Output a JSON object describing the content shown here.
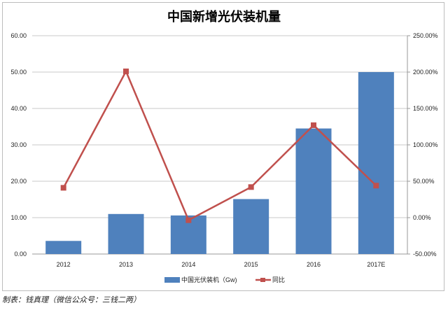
{
  "chart_data": {
    "type": "bar+line",
    "title": "中国新增光伏装机量",
    "categories": [
      "2012",
      "2013",
      "2014",
      "2015",
      "2016",
      "2017E"
    ],
    "series": [
      {
        "name": "中国光伏装机（Gw)",
        "type": "bar",
        "axis": "left",
        "color": "#4f81bd",
        "values": [
          3.6,
          11.0,
          10.6,
          15.1,
          34.5,
          50.0
        ]
      },
      {
        "name": "同比",
        "type": "line",
        "axis": "right",
        "color": "#c0504d",
        "values": [
          41,
          201,
          -3.5,
          42,
          127,
          44
        ]
      }
    ],
    "left_axis": {
      "ylim": [
        0,
        60
      ],
      "ticks": [
        "0.00",
        "10.00",
        "20.00",
        "30.00",
        "40.00",
        "50.00",
        "60.00"
      ]
    },
    "right_axis": {
      "ylim": [
        -50,
        250
      ],
      "ticks": [
        "-50.00%",
        "0.00%",
        "50.00%",
        "100.00%",
        "150.00%",
        "200.00%",
        "250.00%"
      ]
    },
    "grid": true,
    "legend": "bottom"
  },
  "credit": "制表：钱真理（微信公众号：三钱二两）"
}
